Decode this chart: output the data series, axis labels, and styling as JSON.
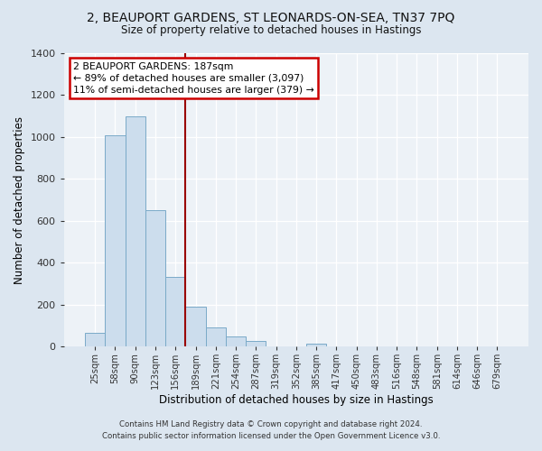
{
  "title": "2, BEAUPORT GARDENS, ST LEONARDS-ON-SEA, TN37 7PQ",
  "subtitle": "Size of property relative to detached houses in Hastings",
  "xlabel": "Distribution of detached houses by size in Hastings",
  "ylabel": "Number of detached properties",
  "bin_labels": [
    "25sqm",
    "58sqm",
    "90sqm",
    "123sqm",
    "156sqm",
    "189sqm",
    "221sqm",
    "254sqm",
    "287sqm",
    "319sqm",
    "352sqm",
    "385sqm",
    "417sqm",
    "450sqm",
    "483sqm",
    "516sqm",
    "548sqm",
    "581sqm",
    "614sqm",
    "646sqm",
    "679sqm"
  ],
  "bar_values": [
    65,
    1010,
    1100,
    650,
    330,
    190,
    90,
    48,
    25,
    0,
    0,
    15,
    0,
    0,
    0,
    0,
    0,
    0,
    0,
    0,
    0
  ],
  "bar_color": "#ccdded",
  "bar_edge_color": "#7aaac8",
  "vline_x_idx": 5,
  "vline_color": "#990000",
  "annotation_title": "2 BEAUPORT GARDENS: 187sqm",
  "annotation_line1": "← 89% of detached houses are smaller (3,097)",
  "annotation_line2": "11% of semi-detached houses are larger (379) →",
  "annotation_box_color": "#ffffff",
  "annotation_box_edge_color": "#cc0000",
  "ylim": [
    0,
    1400
  ],
  "yticks": [
    0,
    200,
    400,
    600,
    800,
    1000,
    1200,
    1400
  ],
  "footer1": "Contains HM Land Registry data © Crown copyright and database right 2024.",
  "footer2": "Contains public sector information licensed under the Open Government Licence v3.0.",
  "bg_color": "#dce6f0",
  "plot_bg_color": "#edf2f7"
}
